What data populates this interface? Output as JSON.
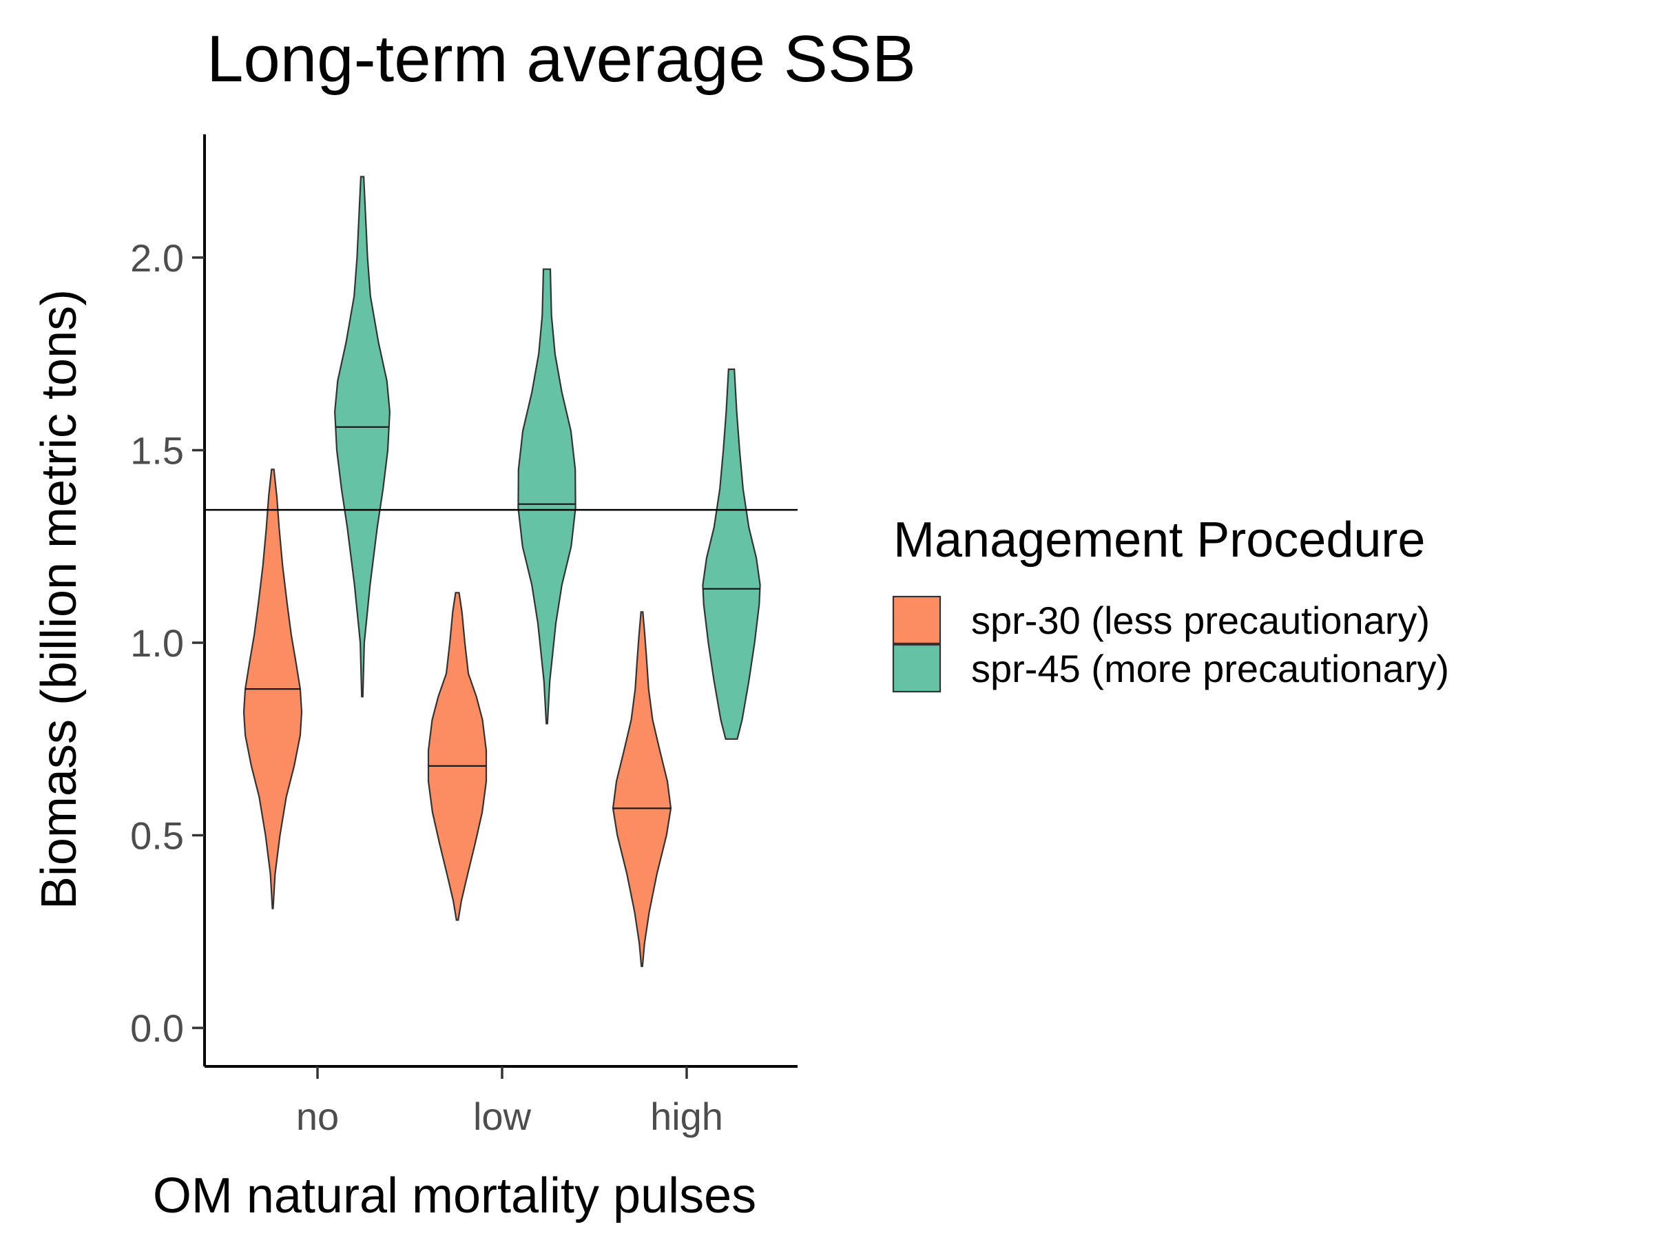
{
  "chart_data": {
    "type": "violin",
    "title": "Long-term average SSB",
    "xlabel": "OM natural mortality pulses",
    "ylabel": "Biomass (billion metric tons)",
    "categories": [
      "no",
      "low",
      "high"
    ],
    "ylim": [
      -0.1,
      2.32
    ],
    "yticks": [
      0.0,
      0.5,
      1.0,
      1.5,
      2.0
    ],
    "ytick_labels": [
      "0.0",
      "0.5",
      "1.0",
      "1.5",
      "2.0"
    ],
    "reference_line": 1.345,
    "legend": {
      "title": "Management Procedure",
      "position": "right",
      "entries": [
        {
          "label": "spr-30 (less precautionary)",
          "color": "#FC8D62"
        },
        {
          "label": "spr-45 (more precautionary)",
          "color": "#66C2A5"
        }
      ]
    },
    "series": [
      {
        "name": "spr-30 (less precautionary)",
        "color": "#FC8D62",
        "violins": [
          {
            "category": "no",
            "min": 0.31,
            "max": 1.45,
            "median": 0.88,
            "profile": [
              [
                0.31,
                0.012
              ],
              [
                0.4,
                0.08
              ],
              [
                0.5,
                0.25
              ],
              [
                0.6,
                0.47
              ],
              [
                0.68,
                0.74
              ],
              [
                0.76,
                0.95
              ],
              [
                0.82,
                1.0
              ],
              [
                0.88,
                0.95
              ],
              [
                0.95,
                0.8
              ],
              [
                1.02,
                0.64
              ],
              [
                1.1,
                0.5
              ],
              [
                1.2,
                0.34
              ],
              [
                1.3,
                0.22
              ],
              [
                1.38,
                0.14
              ],
              [
                1.45,
                0.04
              ]
            ]
          },
          {
            "category": "low",
            "min": 0.28,
            "max": 1.13,
            "median": 0.68,
            "profile": [
              [
                0.28,
                0.03
              ],
              [
                0.33,
                0.14
              ],
              [
                0.4,
                0.36
              ],
              [
                0.48,
                0.62
              ],
              [
                0.56,
                0.86
              ],
              [
                0.64,
                1.0
              ],
              [
                0.72,
                1.0
              ],
              [
                0.8,
                0.87
              ],
              [
                0.86,
                0.66
              ],
              [
                0.92,
                0.38
              ],
              [
                1.0,
                0.26
              ],
              [
                1.08,
                0.16
              ],
              [
                1.13,
                0.06
              ]
            ]
          },
          {
            "category": "high",
            "min": 0.16,
            "max": 1.08,
            "median": 0.57,
            "profile": [
              [
                0.16,
                0.02
              ],
              [
                0.22,
                0.09
              ],
              [
                0.3,
                0.25
              ],
              [
                0.4,
                0.52
              ],
              [
                0.5,
                0.85
              ],
              [
                0.57,
                1.0
              ],
              [
                0.64,
                0.88
              ],
              [
                0.72,
                0.62
              ],
              [
                0.8,
                0.37
              ],
              [
                0.88,
                0.23
              ],
              [
                0.95,
                0.17
              ],
              [
                1.02,
                0.1
              ],
              [
                1.08,
                0.03
              ]
            ]
          }
        ]
      },
      {
        "name": "spr-45 (more precautionary)",
        "color": "#66C2A5",
        "violins": [
          {
            "category": "no",
            "min": 0.86,
            "max": 2.21,
            "median": 1.56,
            "profile": [
              [
                0.86,
                0.018
              ],
              [
                1.0,
                0.07
              ],
              [
                1.15,
                0.27
              ],
              [
                1.3,
                0.52
              ],
              [
                1.4,
                0.72
              ],
              [
                1.5,
                0.88
              ],
              [
                1.6,
                0.95
              ],
              [
                1.68,
                0.85
              ],
              [
                1.78,
                0.56
              ],
              [
                1.9,
                0.28
              ],
              [
                2.0,
                0.18
              ],
              [
                2.1,
                0.12
              ],
              [
                2.21,
                0.05
              ]
            ]
          },
          {
            "category": "low",
            "min": 0.79,
            "max": 1.97,
            "median": 1.36,
            "profile": [
              [
                0.79,
                0.02
              ],
              [
                0.9,
                0.1
              ],
              [
                1.05,
                0.31
              ],
              [
                1.15,
                0.52
              ],
              [
                1.25,
                0.84
              ],
              [
                1.35,
                0.99
              ],
              [
                1.45,
                0.98
              ],
              [
                1.55,
                0.83
              ],
              [
                1.65,
                0.52
              ],
              [
                1.75,
                0.28
              ],
              [
                1.85,
                0.16
              ],
              [
                1.97,
                0.12
              ]
            ]
          },
          {
            "category": "high",
            "min": 0.75,
            "max": 1.71,
            "median": 1.14,
            "profile": [
              [
                0.75,
                0.2
              ],
              [
                0.8,
                0.37
              ],
              [
                0.9,
                0.6
              ],
              [
                1.0,
                0.8
              ],
              [
                1.1,
                0.96
              ],
              [
                1.15,
                0.99
              ],
              [
                1.22,
                0.86
              ],
              [
                1.3,
                0.6
              ],
              [
                1.4,
                0.4
              ],
              [
                1.5,
                0.28
              ],
              [
                1.6,
                0.18
              ],
              [
                1.71,
                0.1
              ]
            ]
          }
        ]
      }
    ]
  }
}
